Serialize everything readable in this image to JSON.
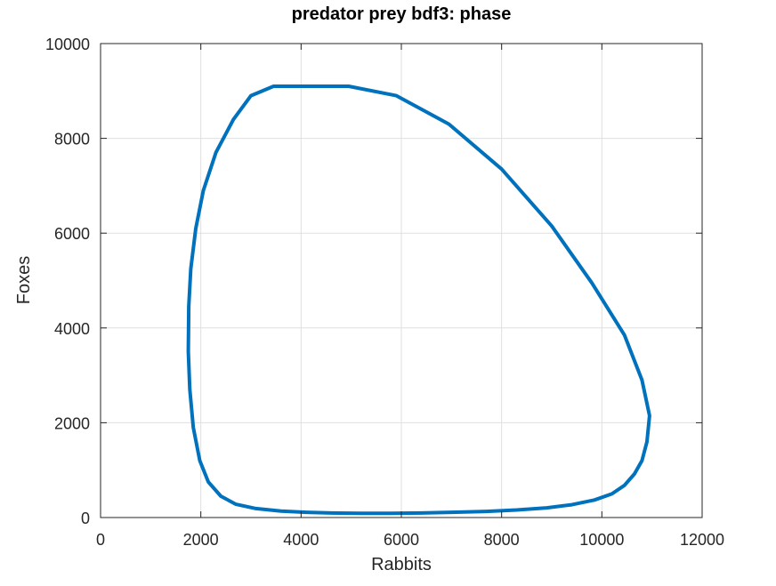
{
  "chart_data": {
    "type": "line",
    "title": "predator prey bdf3: phase",
    "xlabel": "Rabbits",
    "ylabel": "Foxes",
    "xlim": [
      0,
      12000
    ],
    "ylim": [
      0,
      10000
    ],
    "xticks": [
      0,
      2000,
      4000,
      6000,
      8000,
      10000,
      12000
    ],
    "yticks": [
      0,
      2000,
      4000,
      6000,
      8000,
      10000
    ],
    "xtick_labels": [
      "0",
      "2000",
      "4000",
      "6000",
      "8000",
      "10000",
      "12000"
    ],
    "ytick_labels": [
      "0",
      "2000",
      "4000",
      "6000",
      "8000",
      "10000"
    ],
    "grid": true,
    "line_color": "#0072BD",
    "series": [
      {
        "x": [
          4950,
          5900,
          6950,
          8000,
          9000,
          9800,
          10450,
          10800,
          10950,
          10900,
          10800,
          10650,
          10450,
          10200,
          9850,
          9400,
          8900,
          8300,
          7700,
          7000,
          6400,
          5800,
          5200,
          4600,
          4100,
          3600,
          3100,
          2700,
          2400,
          2150,
          1980,
          1850,
          1780,
          1750,
          1760,
          1800,
          1900,
          2050,
          2300,
          2650,
          3000,
          3450,
          4100,
          4950
        ],
        "y": [
          9100,
          8900,
          8300,
          7350,
          6150,
          4950,
          3850,
          2900,
          2150,
          1600,
          1200,
          920,
          680,
          500,
          370,
          270,
          205,
          160,
          130,
          110,
          95,
          90,
          90,
          95,
          110,
          135,
          190,
          280,
          450,
          750,
          1200,
          1900,
          2700,
          3500,
          4450,
          5250,
          6100,
          6900,
          7700,
          8400,
          8900,
          9100,
          9100,
          9100
        ]
      }
    ]
  }
}
